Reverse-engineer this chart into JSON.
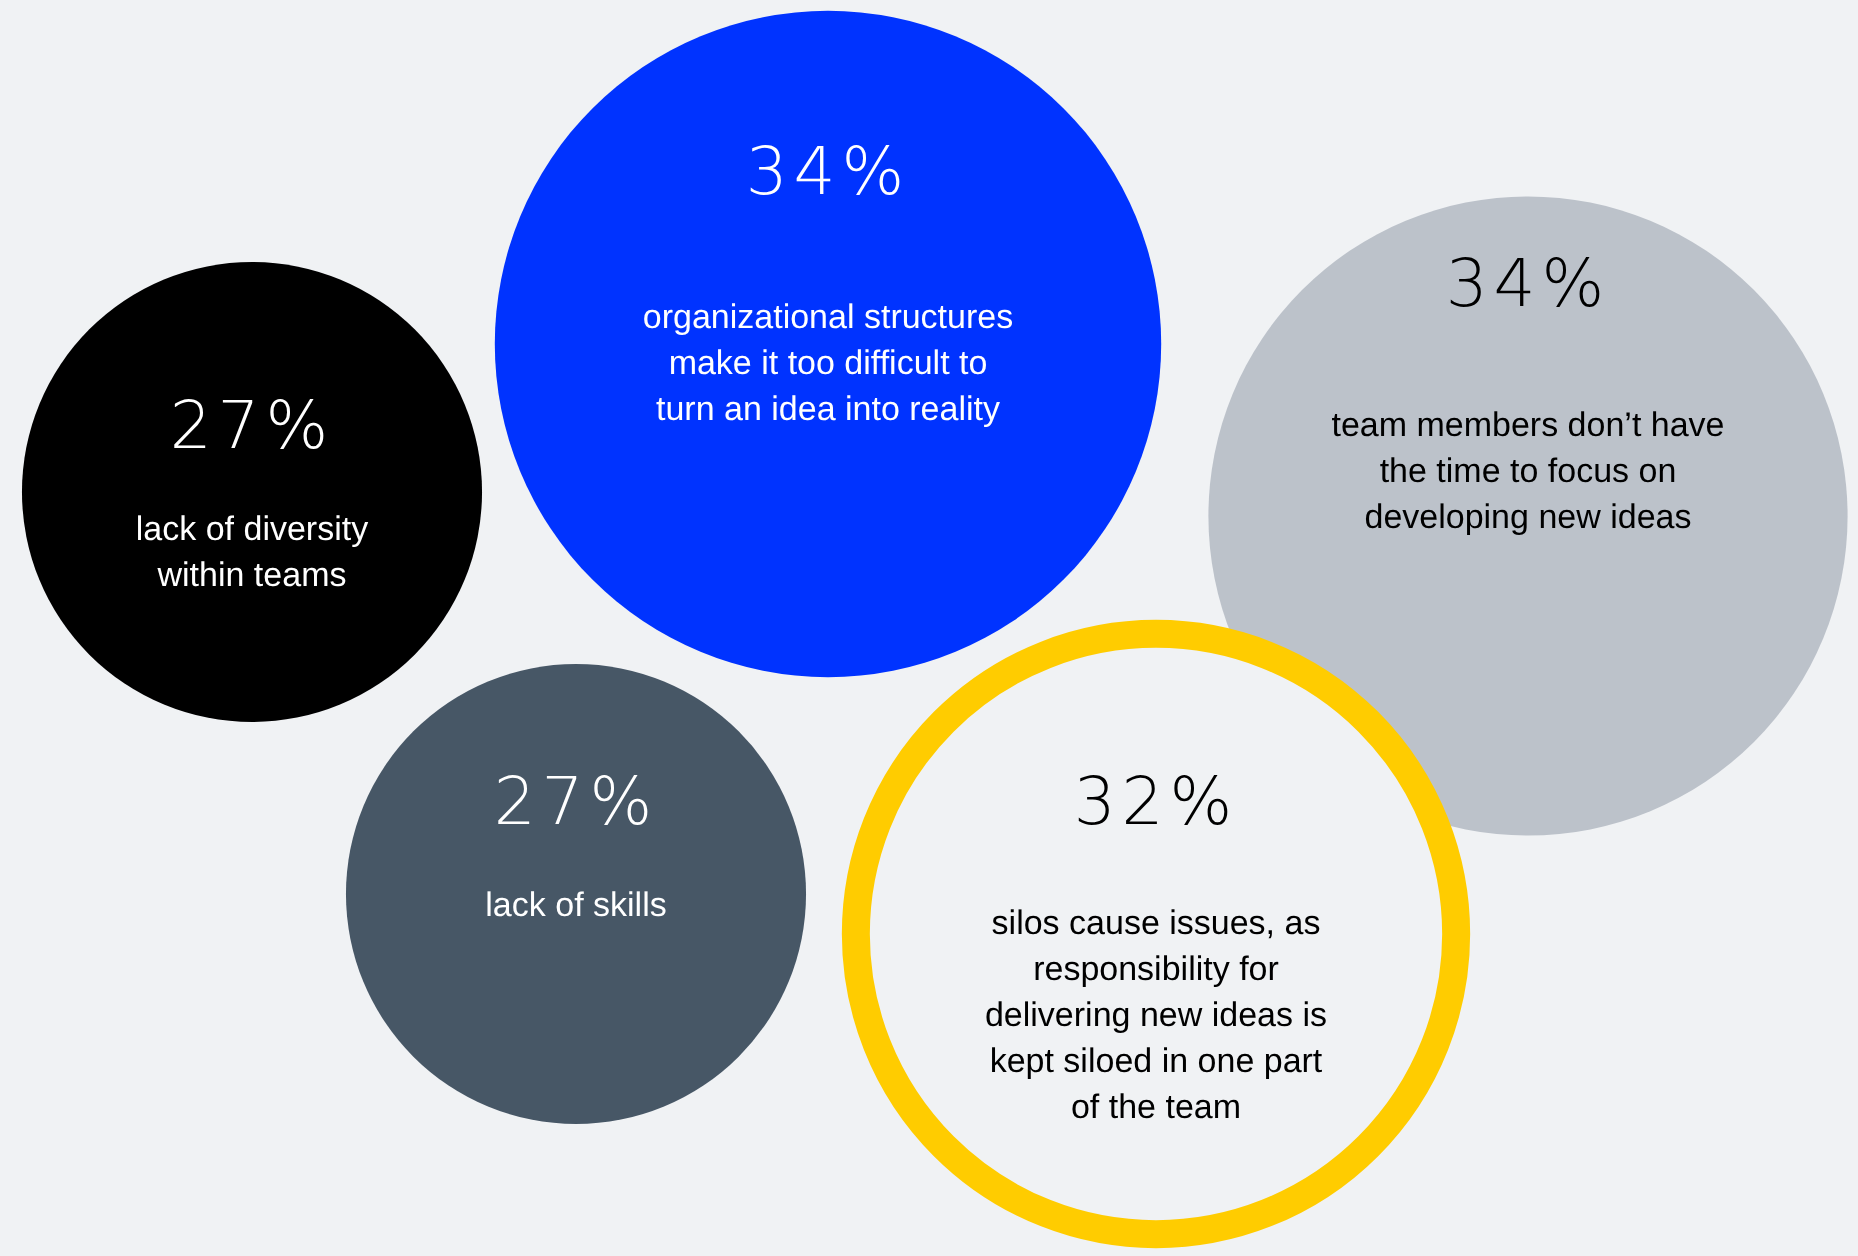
{
  "chart_data": {
    "type": "other",
    "categories": [
      "lack of diversity within teams",
      "organizational structures make it too difficult to turn an idea into reality",
      "team members don’t have the time to focus on developing new ideas",
      "lack of skills",
      "silos cause issues, as responsibility for delivering new ideas is kept siloed in one part of the team"
    ],
    "values": [
      27,
      34,
      34,
      27,
      32
    ],
    "value_labels": [
      "27%",
      "34%",
      "34%",
      "27%",
      "32%"
    ],
    "colors": [
      "#000000",
      "#0033ff",
      "#bcc2ca",
      "#475766",
      "#ffcc00"
    ]
  }
}
